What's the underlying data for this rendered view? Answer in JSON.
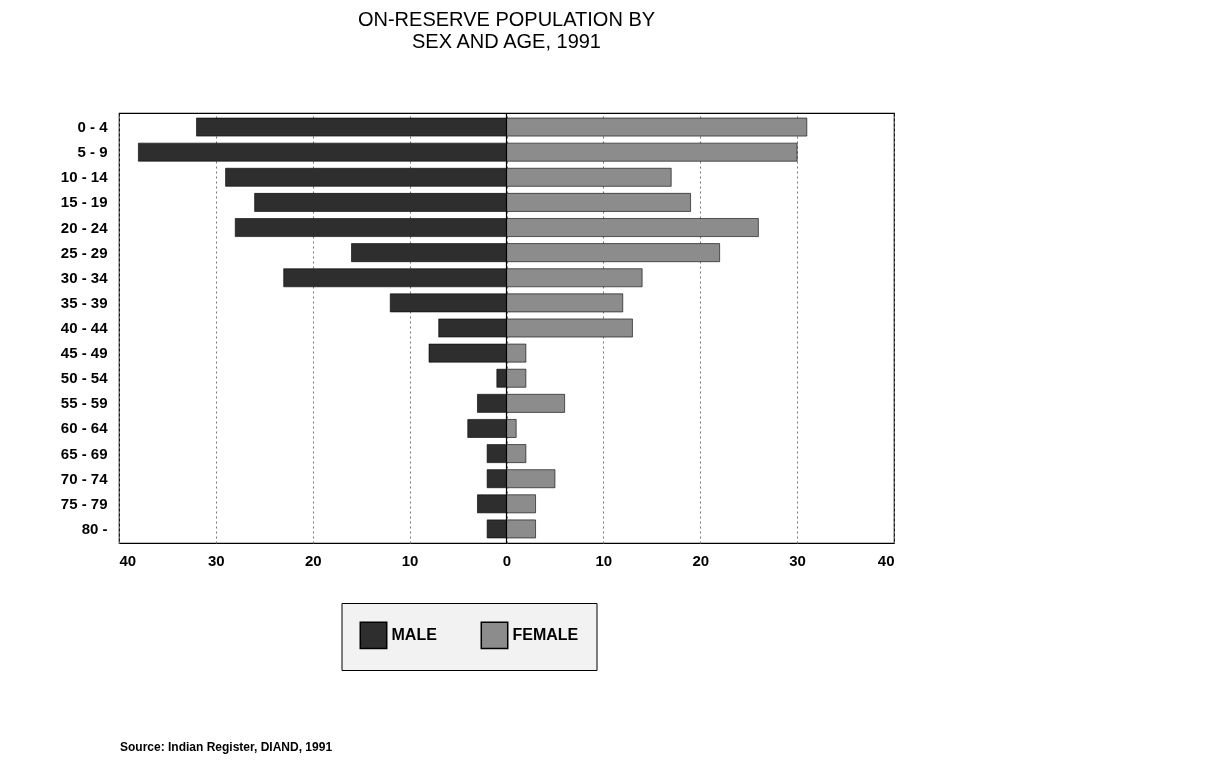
{
  "chart_data": {
    "type": "bar",
    "orientation": "horizontal",
    "stacked": true,
    "title": "ON-RESERVE POPULATION BY\nSEX AND AGE, 1991",
    "categories": [
      "0 - 4",
      "5 - 9",
      "10 - 14",
      "15 - 19",
      "20 - 24",
      "25 - 29",
      "30 - 34",
      "35 - 39",
      "40 - 44",
      "45 - 49",
      "50 - 54",
      "55 - 59",
      "60 - 64",
      "65 - 69",
      "70 - 74",
      "75 - 79",
      "80 -"
    ],
    "series": [
      {
        "name": "MALE",
        "color": "#2e2e2e",
        "values": [
          -32,
          -38,
          -29,
          -26,
          -28,
          -16,
          -23,
          -12,
          -7,
          -8,
          -1,
          -3,
          -4,
          -2,
          -2,
          -3,
          -2
        ]
      },
      {
        "name": "FEMALE",
        "color": "#8c8c8c",
        "values": [
          31,
          30,
          17,
          19,
          26,
          22,
          14,
          12,
          13,
          2,
          2,
          6,
          1,
          2,
          5,
          3,
          3
        ]
      }
    ],
    "xlim": [
      -40,
      40
    ],
    "xticks": [
      {
        "value": -40,
        "label": "40"
      },
      {
        "value": -30,
        "label": "30"
      },
      {
        "value": -20,
        "label": "20"
      },
      {
        "value": -10,
        "label": "10"
      },
      0,
      10,
      20,
      30,
      40
    ],
    "ref_lines": [
      {
        "axis": "x",
        "value": 0,
        "color": "#000000"
      }
    ],
    "grid": "x",
    "legend": "bottom",
    "annotations": [
      "Source: Indian Register, DIAND, 1991"
    ]
  }
}
